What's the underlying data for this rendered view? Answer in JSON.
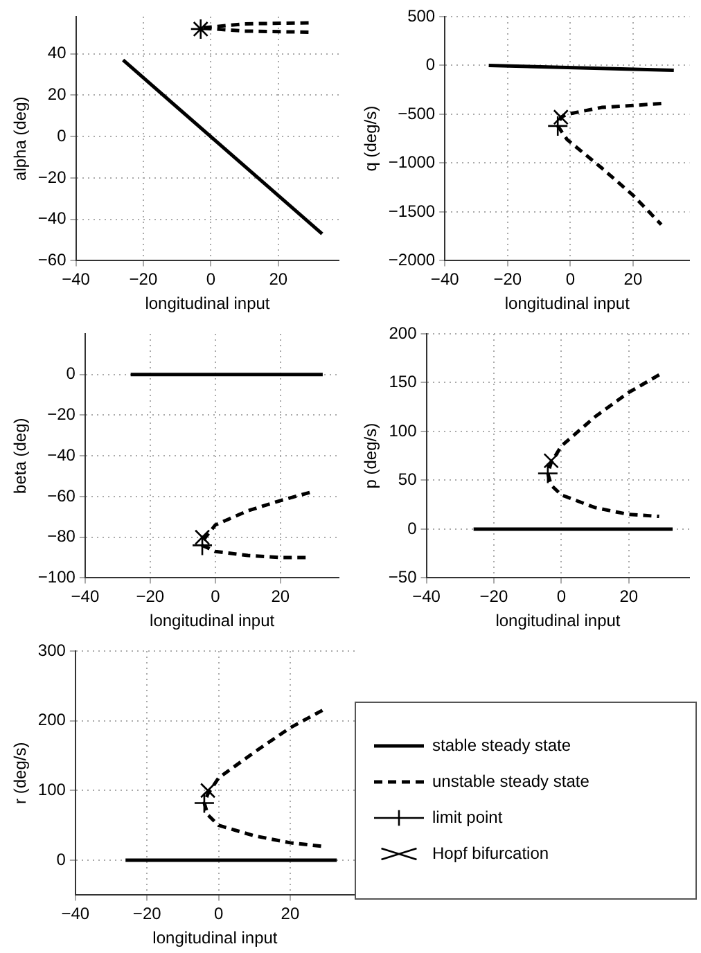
{
  "chart_data": [
    {
      "type": "line",
      "xlabel": "longitudinal input",
      "ylabel": "alpha (deg)",
      "xlim": [
        -40,
        38
      ],
      "xticks": [
        -40,
        -20,
        0,
        20
      ],
      "ylim": [
        -60,
        58
      ],
      "yticks": [
        -60,
        -40,
        -20,
        0,
        20,
        40
      ],
      "grid": true,
      "legend": false,
      "series": [
        {
          "type": "line",
          "line_style": "solid",
          "color": "#000000",
          "x": [
            -26,
            33
          ],
          "values": [
            37,
            -47
          ]
        },
        {
          "type": "line",
          "line_style": "dashed",
          "color": "#000000",
          "x": [
            29,
            10,
            -3,
            10,
            29
          ],
          "values": [
            55,
            54.5,
            52.5,
            51,
            50.5
          ]
        },
        {
          "type": "scatter",
          "marker": "plus",
          "color": "#000000",
          "x": [
            -3
          ],
          "values": [
            52
          ]
        },
        {
          "type": "scatter",
          "marker": "cross",
          "color": "#000000",
          "x": [
            -3
          ],
          "values": [
            52
          ]
        }
      ]
    },
    {
      "type": "line",
      "xlabel": "longitudinal input",
      "ylabel": "q (deg/s)",
      "xlim": [
        -40,
        38
      ],
      "xticks": [
        -40,
        -20,
        0,
        20
      ],
      "ylim": [
        -2000,
        500
      ],
      "yticks": [
        -2000,
        -1500,
        -1000,
        -500,
        0,
        500
      ],
      "grid": true,
      "legend": false,
      "series": [
        {
          "type": "line",
          "line_style": "solid",
          "color": "#000000",
          "x": [
            -26,
            33
          ],
          "values": [
            0,
            -50
          ]
        },
        {
          "type": "line",
          "line_style": "dashed",
          "color": "#000000",
          "x": [
            29,
            20,
            10,
            -1,
            -3,
            -4,
            -1,
            10,
            20,
            29
          ],
          "values": [
            -390,
            -410,
            -430,
            -500,
            -530,
            -620,
            -760,
            -1050,
            -1330,
            -1630
          ]
        },
        {
          "type": "scatter",
          "marker": "plus",
          "color": "#000000",
          "x": [
            -4
          ],
          "values": [
            -620
          ]
        },
        {
          "type": "scatter",
          "marker": "cross",
          "color": "#000000",
          "x": [
            -3
          ],
          "values": [
            -530
          ]
        }
      ]
    },
    {
      "type": "line",
      "xlabel": "longitudinal input",
      "ylabel": "beta (deg)",
      "xlim": [
        -40,
        38
      ],
      "xticks": [
        -40,
        -20,
        0,
        20
      ],
      "ylim": [
        -100,
        20
      ],
      "yticks": [
        -100,
        -80,
        -60,
        -40,
        -20,
        0
      ],
      "grid": true,
      "legend": false,
      "series": [
        {
          "type": "line",
          "line_style": "solid",
          "color": "#000000",
          "x": [
            -26,
            33
          ],
          "values": [
            0,
            0
          ]
        },
        {
          "type": "line",
          "line_style": "dashed",
          "color": "#000000",
          "x": [
            29,
            20,
            10,
            0,
            -4,
            -4,
            0,
            10,
            20,
            29
          ],
          "values": [
            -58,
            -62,
            -67,
            -74,
            -82,
            -84,
            -87,
            -89,
            -90,
            -90
          ]
        },
        {
          "type": "scatter",
          "marker": "plus",
          "color": "#000000",
          "x": [
            -4
          ],
          "values": [
            -84
          ]
        },
        {
          "type": "scatter",
          "marker": "cross",
          "color": "#000000",
          "x": [
            -4
          ],
          "values": [
            -80
          ]
        }
      ]
    },
    {
      "type": "line",
      "xlabel": "longitudinal input",
      "ylabel": "p (deg/s)",
      "xlim": [
        -40,
        38
      ],
      "xticks": [
        -40,
        -20,
        0,
        20
      ],
      "ylim": [
        -50,
        200
      ],
      "yticks": [
        -50,
        0,
        50,
        100,
        150,
        200
      ],
      "grid": true,
      "legend": false,
      "series": [
        {
          "type": "line",
          "line_style": "solid",
          "color": "#000000",
          "x": [
            -26,
            33
          ],
          "values": [
            0,
            0
          ]
        },
        {
          "type": "line",
          "line_style": "dashed",
          "color": "#000000",
          "x": [
            29,
            20,
            10,
            0,
            -3,
            -4,
            -3,
            0,
            10,
            20,
            29
          ],
          "values": [
            158,
            140,
            115,
            85,
            68,
            57,
            45,
            35,
            22,
            15,
            13
          ]
        },
        {
          "type": "scatter",
          "marker": "plus",
          "color": "#000000",
          "x": [
            -4
          ],
          "values": [
            57
          ]
        },
        {
          "type": "scatter",
          "marker": "cross",
          "color": "#000000",
          "x": [
            -3
          ],
          "values": [
            70
          ]
        }
      ]
    },
    {
      "type": "line",
      "xlabel": "longitudinal input",
      "ylabel": "r (deg/s)",
      "xlim": [
        -40,
        38
      ],
      "xticks": [
        -40,
        -20,
        0,
        20
      ],
      "ylim": [
        -50,
        300
      ],
      "yticks": [
        0,
        100,
        200,
        300
      ],
      "grid": true,
      "legend": "right",
      "series": [
        {
          "name": "stable steady state",
          "type": "line",
          "line_style": "solid",
          "color": "#000000",
          "x": [
            -26,
            33
          ],
          "values": [
            0,
            0
          ]
        },
        {
          "name": "unstable steady state",
          "type": "line",
          "line_style": "dashed",
          "color": "#000000",
          "x": [
            29,
            20,
            10,
            0,
            -3,
            -4,
            -3,
            0,
            10,
            20,
            29
          ],
          "values": [
            215,
            190,
            155,
            118,
            95,
            82,
            65,
            50,
            35,
            25,
            20
          ]
        },
        {
          "name": "limit point",
          "type": "scatter",
          "marker": "plus",
          "color": "#000000",
          "x": [
            -4
          ],
          "values": [
            82
          ]
        },
        {
          "name": "Hopf bifurcation",
          "type": "scatter",
          "marker": "cross",
          "color": "#000000",
          "x": [
            -3
          ],
          "values": [
            100
          ]
        }
      ]
    }
  ]
}
